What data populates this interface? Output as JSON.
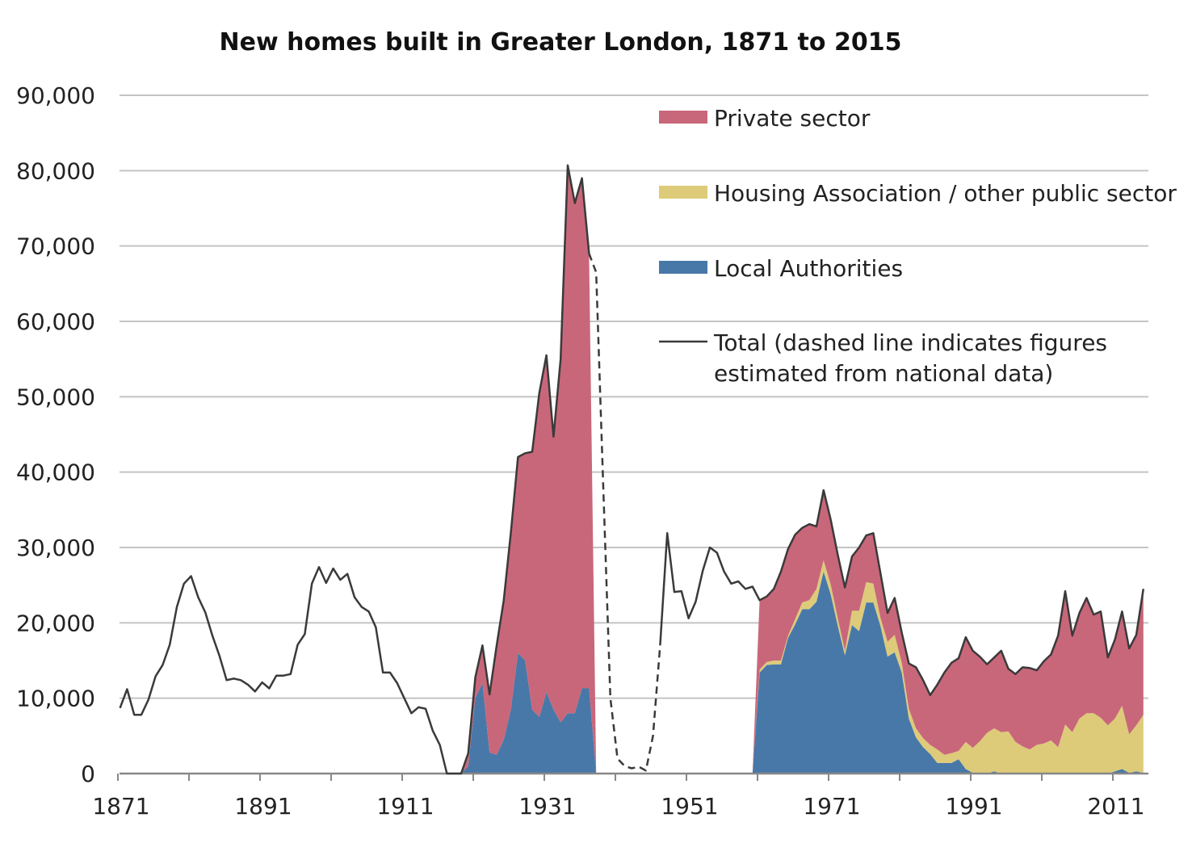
{
  "chart_data": {
    "type": "area",
    "title": "New homes built in Greater London, 1871 to 2015",
    "xlabel": "",
    "ylabel": "",
    "xlim": [
      1871,
      2016
    ],
    "ylim": [
      0,
      90000
    ],
    "grid": true,
    "legend_position": "top-right",
    "y_ticks": [
      "0",
      "10,000",
      "20,000",
      "30,000",
      "40,000",
      "50,000",
      "60,000",
      "70,000",
      "80,000",
      "90,000"
    ],
    "y_tick_values": [
      0,
      10000,
      20000,
      30000,
      40000,
      50000,
      60000,
      70000,
      80000,
      90000
    ],
    "x_ticks": [
      "1871",
      "1891",
      "1911",
      "1931",
      "1951",
      "1971",
      "1991",
      "2011"
    ],
    "colors": {
      "private": "#C9677A",
      "housing_association": "#DDCB7A",
      "local_authorities": "#4878A8",
      "total": "#3a3a3a",
      "grid": "#c4c4c4"
    },
    "legend": {
      "private": "Private sector",
      "housing_association": "Housing Association / other public sector",
      "local_authorities": "Local Authorities",
      "total_line1": "Total (dashed line indicates figures",
      "total_line2": "estimated from national data)"
    },
    "stacked": {
      "x": [
        1919,
        1920,
        1921,
        1922,
        1923,
        1924,
        1925,
        1926,
        1927,
        1928,
        1929,
        1930,
        1931,
        1932,
        1933,
        1934,
        1935,
        1936,
        1937,
        1938,
        1960,
        1961,
        1962,
        1963,
        1964,
        1965,
        1966,
        1967,
        1968,
        1969,
        1970,
        1971,
        1972,
        1973,
        1974,
        1975,
        1976,
        1977,
        1978,
        1979,
        1980,
        1981,
        1982,
        1983,
        1984,
        1985,
        1986,
        1987,
        1988,
        1989,
        1990,
        1991,
        1992,
        1993,
        1994,
        1995,
        1996,
        1997,
        1998,
        1999,
        2000,
        2001,
        2002,
        2003,
        2004,
        2005,
        2006,
        2007,
        2008,
        2009,
        2010,
        2011,
        2012,
        2013,
        2014,
        2015
      ],
      "series": [
        {
          "name": "Local Authorities",
          "key": "local_authorities",
          "values": [
            0,
            1000,
            10000,
            12000,
            2800,
            2500,
            4500,
            8500,
            16000,
            15000,
            8500,
            7500,
            10800,
            8500,
            6800,
            8000,
            8000,
            11300,
            11300,
            0,
            0,
            13400,
            14400,
            14500,
            14500,
            18000,
            19800,
            21800,
            21800,
            22800,
            26800,
            23800,
            19600,
            15700,
            19700,
            18900,
            22700,
            22700,
            19600,
            15500,
            16100,
            13400,
            7300,
            4800,
            3500,
            2600,
            1400,
            1400,
            1400,
            1900,
            600,
            100,
            0,
            0,
            300,
            0,
            0,
            0,
            0,
            0,
            0,
            0,
            0,
            0,
            0,
            0,
            0,
            0,
            0,
            0,
            0,
            300,
            600,
            100,
            300,
            100
          ]
        },
        {
          "name": "Housing Association / other public sector",
          "key": "housing_association",
          "values": [
            0,
            0,
            0,
            0,
            0,
            0,
            0,
            0,
            0,
            0,
            0,
            0,
            0,
            0,
            0,
            0,
            0,
            0,
            0,
            0,
            0,
            400,
            400,
            500,
            500,
            300,
            700,
            900,
            1200,
            1700,
            1500,
            1300,
            1000,
            600,
            1900,
            2700,
            2700,
            2500,
            1100,
            2000,
            2300,
            1300,
            1300,
            1200,
            1200,
            1200,
            1800,
            1100,
            1300,
            1100,
            3600,
            3300,
            4300,
            5400,
            5700,
            5500,
            5600,
            4200,
            3600,
            3200,
            3800,
            4000,
            4400,
            3500,
            6500,
            5500,
            7300,
            8000,
            8000,
            7400,
            6400,
            7000,
            8400,
            5100,
            6100,
            7700
          ]
        },
        {
          "name": "Private sector",
          "key": "private",
          "values": [
            0,
            1700,
            2800,
            5000,
            7700,
            14500,
            18500,
            23500,
            26000,
            27500,
            34200,
            43000,
            44700,
            36200,
            48200,
            72700,
            67700,
            67700,
            57700,
            0,
            0,
            9200,
            8700,
            9500,
            11800,
            11500,
            11200,
            9900,
            10100,
            8300,
            9300,
            8600,
            8400,
            8400,
            7200,
            8400,
            6200,
            6700,
            5900,
            3800,
            4900,
            4000,
            6000,
            8100,
            7700,
            6600,
            8600,
            10900,
            12000,
            12300,
            13900,
            12900,
            11200,
            9100,
            9400,
            10800,
            8300,
            9000,
            10500,
            10800,
            9900,
            10900,
            11400,
            14800,
            17700,
            12800,
            14000,
            15300,
            13100,
            14100,
            9000,
            10500,
            12500,
            11400,
            12000,
            16700
          ]
        }
      ]
    },
    "total": {
      "name": "Total",
      "start_year": 1871,
      "estimated_years": [
        1938,
        1939,
        1940,
        1941,
        1942,
        1943,
        1944,
        1945,
        1946
      ],
      "values": [
        8700,
        11200,
        7800,
        7800,
        9800,
        12900,
        14400,
        17100,
        22100,
        25200,
        26200,
        23400,
        21400,
        18300,
        15600,
        12400,
        12600,
        12400,
        11800,
        10900,
        12100,
        11300,
        13000,
        13000,
        13200,
        17100,
        18500,
        25200,
        27400,
        25300,
        27200,
        25700,
        26500,
        23400,
        22100,
        21500,
        19400,
        13400,
        13400,
        12000,
        10000,
        8000,
        8800,
        8600,
        5700,
        3800,
        0,
        0,
        0,
        2700,
        12800,
        17000,
        10500,
        17000,
        23000,
        32000,
        42000,
        42500,
        42700,
        50500,
        55500,
        44700,
        55000,
        80700,
        75700,
        79000,
        69000,
        66500,
        38000,
        10000,
        2000,
        1000,
        700,
        900,
        400,
        5000,
        17000,
        31900,
        24100,
        24200,
        20600,
        22800,
        26900,
        30000,
        29300,
        26800,
        25200,
        25500,
        24500,
        24800,
        23000,
        23500,
        24500,
        26800,
        29800,
        31700,
        32600,
        33100,
        32800,
        37600,
        33700,
        29000,
        24700,
        28800,
        30000,
        31600,
        31900,
        26600,
        21300,
        23300,
        18700,
        14600,
        14100,
        12400,
        10400,
        11800,
        13400,
        14700,
        15300,
        18100,
        16300,
        15500,
        14500,
        15400,
        16300,
        13900,
        13200,
        14100,
        14000,
        13700,
        14900,
        15800,
        18300,
        24200,
        18300,
        21300,
        23300,
        21100,
        21500,
        15400,
        17800,
        21500,
        16600,
        18400,
        24500
      ]
    }
  }
}
